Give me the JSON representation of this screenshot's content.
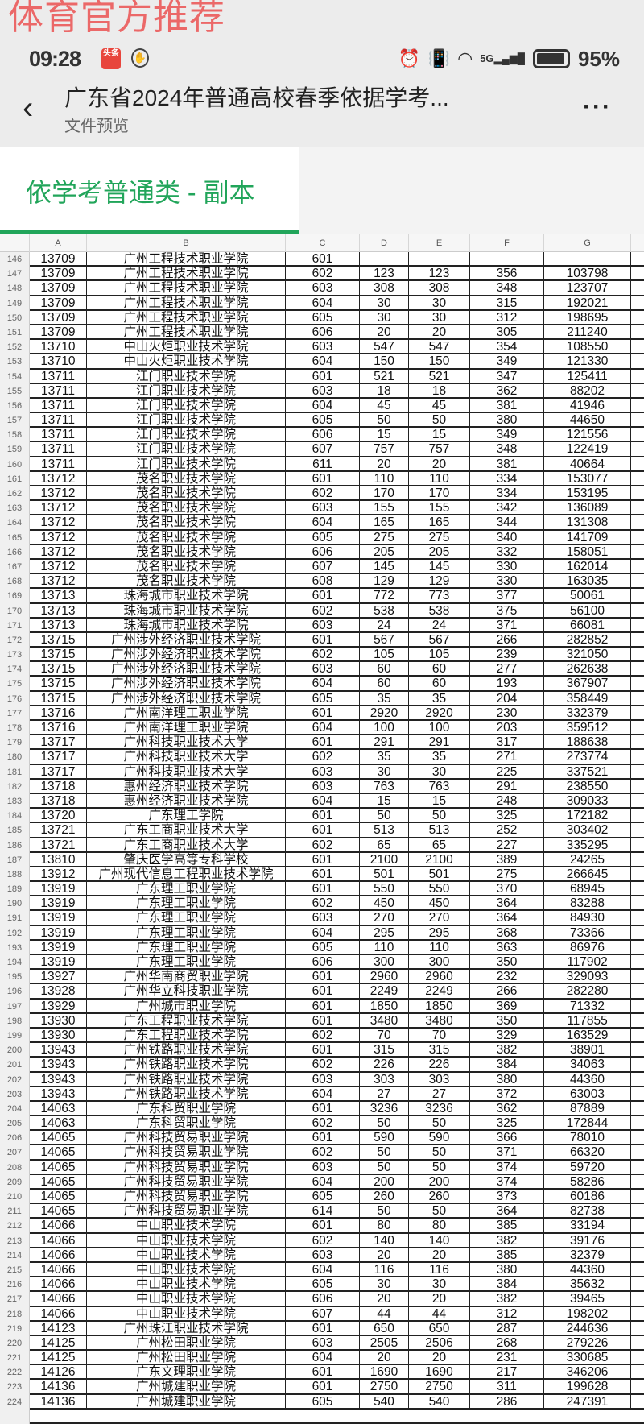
{
  "watermark": "体育官方推荐",
  "status_bar": {
    "time": "09:28",
    "app_badge": "头条",
    "network": "5G",
    "battery": "95%",
    "battery_level": 0.95
  },
  "header": {
    "title": "广东省2024年普通高校春季依据学考...",
    "subtitle": "文件预览",
    "more_icon": "more-icon",
    "back_icon": "back-icon"
  },
  "tabs": [
    {
      "label": "依学考普通类 - 副本",
      "active": true
    }
  ],
  "accent_color": "#21a55a",
  "sheet": {
    "columns": [
      "A",
      "B",
      "C",
      "D",
      "E",
      "F",
      "G"
    ],
    "partial_top": {
      "row": "146",
      "cells": [
        "13709",
        "广州工程技术职业学院",
        "601",
        "",
        "",
        "",
        ""
      ]
    },
    "rows": [
      [
        "147",
        "13709",
        "广州工程技术职业学院",
        "602",
        "123",
        "123",
        "356",
        "103798"
      ],
      [
        "148",
        "13709",
        "广州工程技术职业学院",
        "603",
        "308",
        "308",
        "348",
        "123707"
      ],
      [
        "149",
        "13709",
        "广州工程技术职业学院",
        "604",
        "30",
        "30",
        "315",
        "192021"
      ],
      [
        "150",
        "13709",
        "广州工程技术职业学院",
        "605",
        "30",
        "30",
        "312",
        "198695"
      ],
      [
        "151",
        "13709",
        "广州工程技术职业学院",
        "606",
        "20",
        "20",
        "305",
        "211240"
      ],
      [
        "152",
        "13710",
        "中山火炬职业技术学院",
        "603",
        "547",
        "547",
        "354",
        "108550"
      ],
      [
        "153",
        "13710",
        "中山火炬职业技术学院",
        "604",
        "150",
        "150",
        "349",
        "121330"
      ],
      [
        "154",
        "13711",
        "江门职业技术学院",
        "601",
        "521",
        "521",
        "347",
        "125411"
      ],
      [
        "155",
        "13711",
        "江门职业技术学院",
        "603",
        "18",
        "18",
        "362",
        "88202"
      ],
      [
        "156",
        "13711",
        "江门职业技术学院",
        "604",
        "45",
        "45",
        "381",
        "41946"
      ],
      [
        "157",
        "13711",
        "江门职业技术学院",
        "605",
        "50",
        "50",
        "380",
        "44650"
      ],
      [
        "158",
        "13711",
        "江门职业技术学院",
        "606",
        "15",
        "15",
        "349",
        "121556"
      ],
      [
        "159",
        "13711",
        "江门职业技术学院",
        "607",
        "757",
        "757",
        "348",
        "122419"
      ],
      [
        "160",
        "13711",
        "江门职业技术学院",
        "611",
        "20",
        "20",
        "381",
        "40664"
      ],
      [
        "161",
        "13712",
        "茂名职业技术学院",
        "601",
        "110",
        "110",
        "334",
        "153077"
      ],
      [
        "162",
        "13712",
        "茂名职业技术学院",
        "602",
        "170",
        "170",
        "334",
        "153195"
      ],
      [
        "163",
        "13712",
        "茂名职业技术学院",
        "603",
        "155",
        "155",
        "342",
        "136089"
      ],
      [
        "164",
        "13712",
        "茂名职业技术学院",
        "604",
        "165",
        "165",
        "344",
        "131308"
      ],
      [
        "165",
        "13712",
        "茂名职业技术学院",
        "605",
        "275",
        "275",
        "340",
        "141709"
      ],
      [
        "166",
        "13712",
        "茂名职业技术学院",
        "606",
        "205",
        "205",
        "332",
        "158051"
      ],
      [
        "167",
        "13712",
        "茂名职业技术学院",
        "607",
        "145",
        "145",
        "330",
        "162014"
      ],
      [
        "168",
        "13712",
        "茂名职业技术学院",
        "608",
        "129",
        "129",
        "330",
        "163035"
      ],
      [
        "169",
        "13713",
        "珠海城市职业技术学院",
        "601",
        "772",
        "773",
        "377",
        "50061"
      ],
      [
        "170",
        "13713",
        "珠海城市职业技术学院",
        "602",
        "538",
        "538",
        "375",
        "56100"
      ],
      [
        "171",
        "13713",
        "珠海城市职业技术学院",
        "603",
        "24",
        "24",
        "371",
        "66081"
      ],
      [
        "172",
        "13715",
        "广州涉外经济职业技术学院",
        "601",
        "567",
        "567",
        "266",
        "282852"
      ],
      [
        "173",
        "13715",
        "广州涉外经济职业技术学院",
        "602",
        "105",
        "105",
        "239",
        "321050"
      ],
      [
        "174",
        "13715",
        "广州涉外经济职业技术学院",
        "603",
        "60",
        "60",
        "277",
        "262638"
      ],
      [
        "175",
        "13715",
        "广州涉外经济职业技术学院",
        "604",
        "60",
        "60",
        "193",
        "367907"
      ],
      [
        "176",
        "13715",
        "广州涉外经济职业技术学院",
        "605",
        "35",
        "35",
        "204",
        "358449"
      ],
      [
        "177",
        "13716",
        "广州南洋理工职业学院",
        "601",
        "2920",
        "2920",
        "230",
        "332379"
      ],
      [
        "178",
        "13716",
        "广州南洋理工职业学院",
        "604",
        "100",
        "100",
        "203",
        "359512"
      ],
      [
        "179",
        "13717",
        "广州科技职业技术大学",
        "601",
        "291",
        "291",
        "317",
        "188638"
      ],
      [
        "180",
        "13717",
        "广州科技职业技术大学",
        "602",
        "35",
        "35",
        "271",
        "273774"
      ],
      [
        "181",
        "13717",
        "广州科技职业技术大学",
        "603",
        "30",
        "30",
        "225",
        "337521"
      ],
      [
        "182",
        "13718",
        "惠州经济职业技术学院",
        "603",
        "763",
        "763",
        "291",
        "238550"
      ],
      [
        "183",
        "13718",
        "惠州经济职业技术学院",
        "604",
        "15",
        "15",
        "248",
        "309033"
      ],
      [
        "184",
        "13720",
        "广东理工学院",
        "601",
        "50",
        "50",
        "325",
        "172182"
      ],
      [
        "185",
        "13721",
        "广东工商职业技术大学",
        "601",
        "513",
        "513",
        "252",
        "303402"
      ],
      [
        "186",
        "13721",
        "广东工商职业技术大学",
        "602",
        "65",
        "65",
        "227",
        "335295"
      ],
      [
        "187",
        "13810",
        "肇庆医学高等专科学校",
        "601",
        "2100",
        "2100",
        "389",
        "24265"
      ],
      [
        "188",
        "13912",
        "广州现代信息工程职业技术学院",
        "601",
        "501",
        "501",
        "275",
        "266645"
      ],
      [
        "189",
        "13919",
        "广东理工职业学院",
        "601",
        "550",
        "550",
        "370",
        "68945"
      ],
      [
        "190",
        "13919",
        "广东理工职业学院",
        "602",
        "450",
        "450",
        "364",
        "83288"
      ],
      [
        "191",
        "13919",
        "广东理工职业学院",
        "603",
        "270",
        "270",
        "364",
        "84930"
      ],
      [
        "192",
        "13919",
        "广东理工职业学院",
        "604",
        "295",
        "295",
        "368",
        "73366"
      ],
      [
        "193",
        "13919",
        "广东理工职业学院",
        "605",
        "110",
        "110",
        "363",
        "86976"
      ],
      [
        "194",
        "13919",
        "广东理工职业学院",
        "606",
        "300",
        "300",
        "350",
        "117902"
      ],
      [
        "195",
        "13927",
        "广州华南商贸职业学院",
        "601",
        "2960",
        "2960",
        "232",
        "329093"
      ],
      [
        "196",
        "13928",
        "广州华立科技职业学院",
        "601",
        "2249",
        "2249",
        "266",
        "282280"
      ],
      [
        "197",
        "13929",
        "广州城市职业学院",
        "601",
        "1850",
        "1850",
        "369",
        "71332"
      ],
      [
        "198",
        "13930",
        "广东工程职业技术学院",
        "601",
        "3480",
        "3480",
        "350",
        "117855"
      ],
      [
        "199",
        "13930",
        "广东工程职业技术学院",
        "602",
        "70",
        "70",
        "329",
        "163529"
      ],
      [
        "200",
        "13943",
        "广州铁路职业技术学院",
        "601",
        "315",
        "315",
        "382",
        "38901"
      ],
      [
        "201",
        "13943",
        "广州铁路职业技术学院",
        "602",
        "226",
        "226",
        "384",
        "34063"
      ],
      [
        "202",
        "13943",
        "广州铁路职业技术学院",
        "603",
        "303",
        "303",
        "380",
        "44360"
      ],
      [
        "203",
        "13943",
        "广州铁路职业技术学院",
        "604",
        "27",
        "27",
        "372",
        "63003"
      ],
      [
        "204",
        "14063",
        "广东科贸职业学院",
        "601",
        "3236",
        "3236",
        "362",
        "87889"
      ],
      [
        "205",
        "14063",
        "广东科贸职业学院",
        "602",
        "50",
        "50",
        "325",
        "172844"
      ],
      [
        "206",
        "14065",
        "广州科技贸易职业学院",
        "601",
        "590",
        "590",
        "366",
        "78010"
      ],
      [
        "207",
        "14065",
        "广州科技贸易职业学院",
        "602",
        "50",
        "50",
        "371",
        "66320"
      ],
      [
        "208",
        "14065",
        "广州科技贸易职业学院",
        "603",
        "50",
        "50",
        "374",
        "59720"
      ],
      [
        "209",
        "14065",
        "广州科技贸易职业学院",
        "604",
        "200",
        "200",
        "374",
        "58286"
      ],
      [
        "210",
        "14065",
        "广州科技贸易职业学院",
        "605",
        "260",
        "260",
        "373",
        "60186"
      ],
      [
        "211",
        "14065",
        "广州科技贸易职业学院",
        "614",
        "50",
        "50",
        "364",
        "82738"
      ],
      [
        "212",
        "14066",
        "中山职业技术学院",
        "601",
        "80",
        "80",
        "385",
        "33194"
      ],
      [
        "213",
        "14066",
        "中山职业技术学院",
        "602",
        "140",
        "140",
        "382",
        "39176"
      ],
      [
        "214",
        "14066",
        "中山职业技术学院",
        "603",
        "20",
        "20",
        "385",
        "32379"
      ],
      [
        "215",
        "14066",
        "中山职业技术学院",
        "604",
        "116",
        "116",
        "380",
        "44360"
      ],
      [
        "216",
        "14066",
        "中山职业技术学院",
        "605",
        "30",
        "30",
        "384",
        "35632"
      ],
      [
        "217",
        "14066",
        "中山职业技术学院",
        "606",
        "20",
        "20",
        "382",
        "39465"
      ],
      [
        "218",
        "14066",
        "中山职业技术学院",
        "607",
        "44",
        "44",
        "312",
        "198202"
      ],
      [
        "219",
        "14123",
        "广州珠江职业技术学院",
        "601",
        "650",
        "650",
        "287",
        "244636"
      ],
      [
        "220",
        "14125",
        "广州松田职业学院",
        "603",
        "2505",
        "2506",
        "268",
        "279226"
      ],
      [
        "221",
        "14125",
        "广州松田职业学院",
        "604",
        "20",
        "20",
        "231",
        "330685"
      ],
      [
        "222",
        "14126",
        "广东文理职业学院",
        "601",
        "1690",
        "1690",
        "217",
        "346206"
      ],
      [
        "223",
        "14136",
        "广州城建职业学院",
        "601",
        "2750",
        "2750",
        "311",
        "199628"
      ],
      [
        "224",
        "14136",
        "广州城建职业学院",
        "605",
        "540",
        "540",
        "286",
        "247391"
      ]
    ]
  }
}
